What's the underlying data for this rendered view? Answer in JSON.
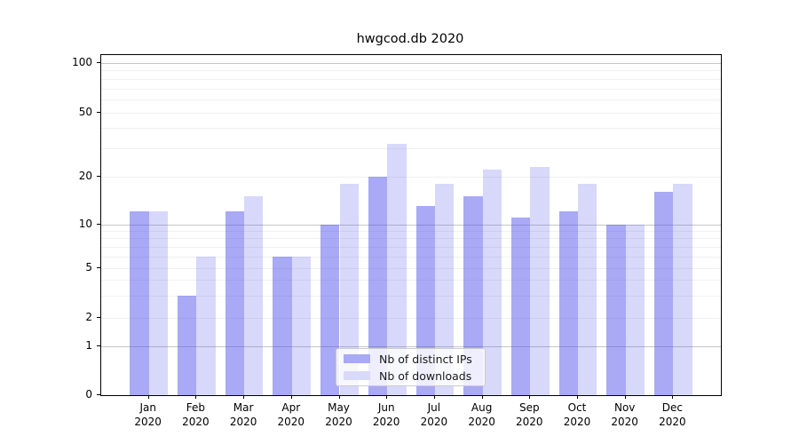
{
  "title": "hwgcod.db 2020",
  "chart_data": {
    "type": "bar",
    "title": "hwgcod.db 2020",
    "categories": [
      "Jan 2020",
      "Feb 2020",
      "Mar 2020",
      "Apr 2020",
      "May 2020",
      "Jun 2020",
      "Jul 2020",
      "Aug 2020",
      "Sep 2020",
      "Oct 2020",
      "Nov 2020",
      "Dec 2020"
    ],
    "series": [
      {
        "name": "Nb of distinct IPs",
        "color": "#a9a9f5",
        "values": [
          12,
          3,
          12,
          6,
          10,
          20,
          13,
          15,
          11,
          12,
          10,
          16
        ]
      },
      {
        "name": "Nb of downloads",
        "color": "#d9d9f9",
        "values": [
          12,
          6,
          15,
          6,
          18,
          32,
          18,
          22,
          23,
          18,
          10,
          18
        ]
      }
    ],
    "xlabel": "",
    "ylabel": "",
    "yscale": "log-like (0,1,2,5,10,20,50,100)",
    "yticks": [
      0,
      1,
      2,
      5,
      10,
      20,
      50,
      100
    ],
    "ylim": [
      0,
      110
    ],
    "grid": true,
    "legend_position": "lower center"
  },
  "y_axis": {
    "tick_labels": [
      "100",
      "50",
      "20",
      "10",
      "5",
      "2",
      "1",
      "0"
    ]
  },
  "x_axis": {
    "months": [
      "Jan",
      "Feb",
      "Mar",
      "Apr",
      "May",
      "Jun",
      "Jul",
      "Aug",
      "Sep",
      "Oct",
      "Nov",
      "Dec"
    ],
    "year": "2020"
  },
  "legend": {
    "items": [
      {
        "label": "Nb of distinct IPs",
        "color": "#a9a9f5"
      },
      {
        "label": "Nb of downloads",
        "color": "#d9d9f9"
      }
    ]
  },
  "colors": {
    "bar_distinct_ips": "#a9a9f5",
    "bar_downloads": "#d9d9f9",
    "grid_major": "#c6c6c6",
    "grid_minor": "#f0f0f0",
    "spine": "#000000",
    "background": "#ffffff"
  }
}
